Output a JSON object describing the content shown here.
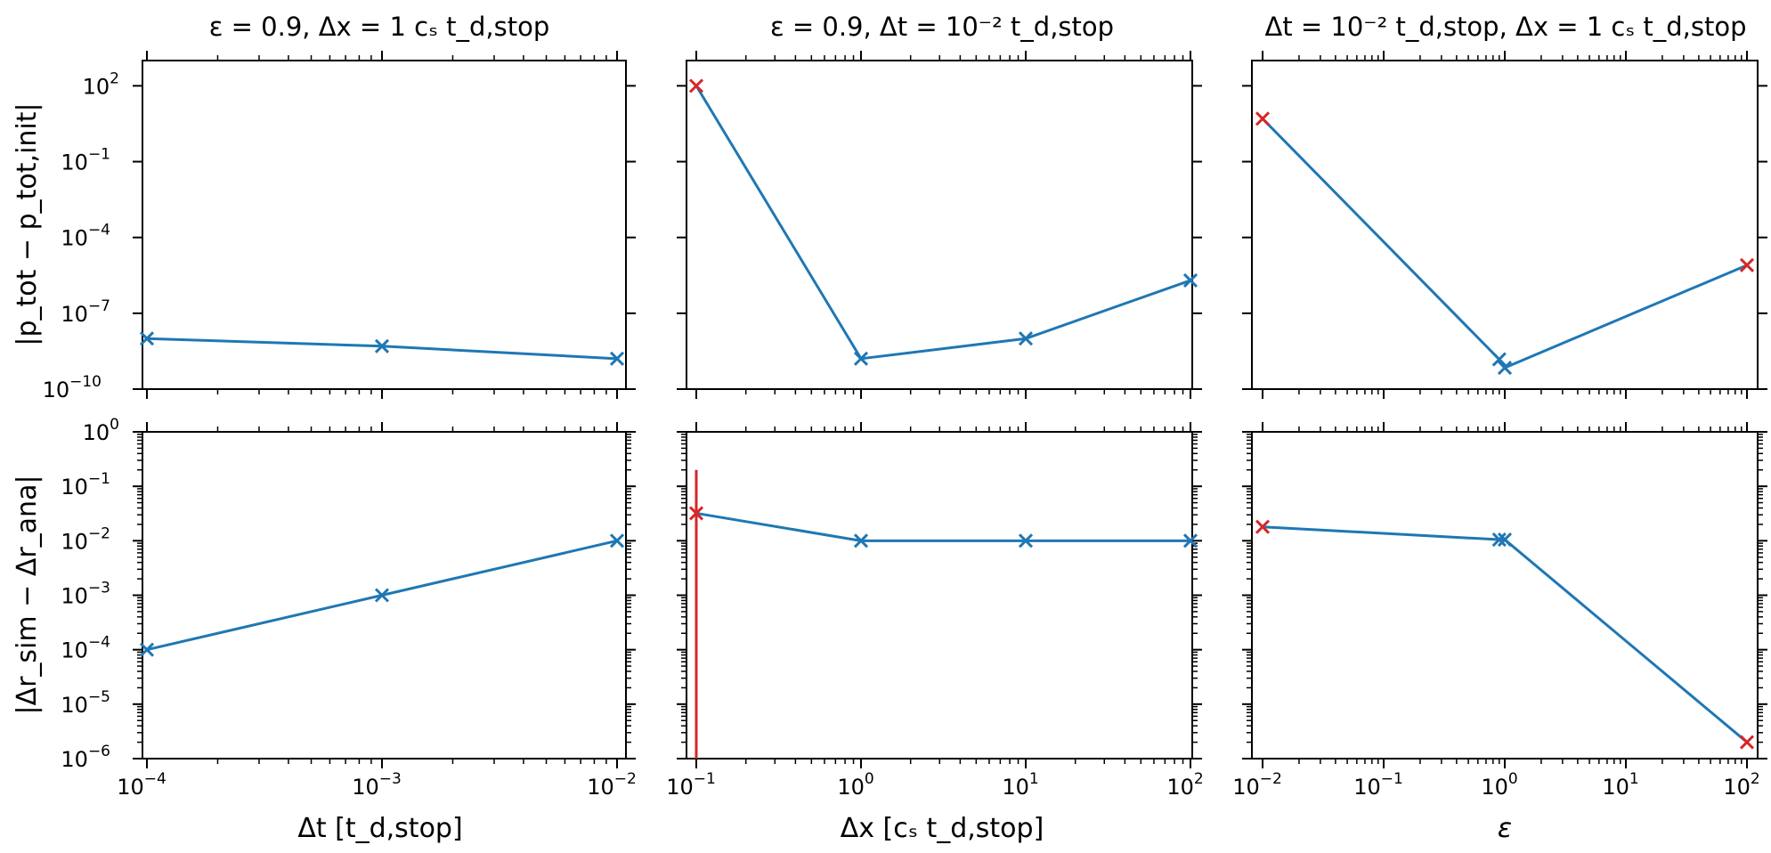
{
  "chart_data": [
    {
      "id": "p_dt",
      "type": "line",
      "xscale": "log",
      "yscale": "log",
      "xlim": [
        0.0001,
        0.01
      ],
      "ylim": [
        1e-10,
        1000
      ],
      "x": [
        0.0001,
        0.001,
        0.01
      ],
      "y": [
        1e-08,
        5e-09,
        1.6e-09
      ],
      "colors": [
        "#1f77b4",
        "#1f77b4",
        "#1f77b4"
      ],
      "title": "ε = 0.9, Δx = 1 cₛ t_d,stop",
      "ylabel": "|p_tot − p_tot,init|",
      "xlabel": "",
      "ytick_exponents": [
        "2",
        "−1",
        "−4",
        "−7",
        "−10"
      ],
      "ytick_values": [
        100,
        0.1,
        0.0001,
        1e-07,
        1e-10
      ],
      "xtick_exponents": [],
      "xtick_values": [
        0.0001,
        0.001,
        0.01
      ]
    },
    {
      "id": "p_dx",
      "type": "line",
      "xscale": "log",
      "yscale": "log",
      "xlim": [
        0.1,
        100
      ],
      "ylim": [
        1e-10,
        1000
      ],
      "x": [
        0.1,
        1,
        10,
        100
      ],
      "y": [
        100,
        1.6e-09,
        1e-08,
        2e-06
      ],
      "colors": [
        "#d62728",
        "#1f77b4",
        "#1f77b4",
        "#1f77b4"
      ],
      "title": "ε = 0.9, Δt = 10⁻² t_d,stop",
      "ylabel": "",
      "xlabel": "",
      "ytick_exponents": [],
      "ytick_values": [
        100,
        0.1,
        0.0001,
        1e-07,
        1e-10
      ],
      "xtick_exponents": [],
      "xtick_values": [
        0.1,
        1,
        10,
        100
      ]
    },
    {
      "id": "p_eps",
      "type": "line",
      "xscale": "log",
      "yscale": "log",
      "xlim": [
        0.01,
        100
      ],
      "ylim": [
        1e-10,
        1000
      ],
      "x": [
        0.01,
        0.9,
        1,
        100
      ],
      "y": [
        5,
        1.5e-09,
        7e-10,
        8e-06
      ],
      "colors": [
        "#d62728",
        "#1f77b4",
        "#1f77b4",
        "#d62728"
      ],
      "title": "Δt = 10⁻² t_d,stop, Δx = 1 cₛ t_d,stop",
      "ylabel": "",
      "xlabel": "",
      "ytick_exponents": [],
      "ytick_values": [
        100,
        0.1,
        0.0001,
        1e-07,
        1e-10
      ],
      "xtick_exponents": [],
      "xtick_values": [
        0.01,
        0.1,
        1,
        10,
        100
      ]
    },
    {
      "id": "r_dt",
      "type": "line",
      "xscale": "log",
      "yscale": "log",
      "xlim": [
        0.0001,
        0.01
      ],
      "ylim": [
        1e-06,
        1
      ],
      "x": [
        0.0001,
        0.001,
        0.01
      ],
      "y": [
        0.0001,
        0.001,
        0.01
      ],
      "colors": [
        "#1f77b4",
        "#1f77b4",
        "#1f77b4"
      ],
      "title": "",
      "ylabel": "|Δr_sim − Δr_ana|",
      "xlabel": "Δt [t_d,stop]",
      "ytick_exponents": [
        "0",
        "−1",
        "−2",
        "−3",
        "−4",
        "−5",
        "−6"
      ],
      "ytick_values": [
        1,
        0.1,
        0.01,
        0.001,
        0.0001,
        1e-05,
        1e-06
      ],
      "xtick_exponents": [
        "−4",
        "−3",
        "−2"
      ],
      "xtick_values": [
        0.0001,
        0.001,
        0.01
      ]
    },
    {
      "id": "r_dx",
      "type": "line",
      "xscale": "log",
      "yscale": "log",
      "xlim": [
        0.1,
        100
      ],
      "ylim": [
        1e-06,
        1
      ],
      "x": [
        0.1,
        1,
        10,
        100
      ],
      "y": [
        0.032,
        0.01,
        0.01,
        0.01
      ],
      "colors": [
        "#d62728",
        "#1f77b4",
        "#1f77b4",
        "#1f77b4"
      ],
      "errorbar": {
        "x": 0.1,
        "y_low": 1e-06,
        "y_high": 0.2,
        "color": "#d62728"
      },
      "title": "",
      "ylabel": "",
      "xlabel": "Δx [cₛ t_d,stop]",
      "ytick_exponents": [],
      "ytick_values": [
        1,
        0.1,
        0.01,
        0.001,
        0.0001,
        1e-05,
        1e-06
      ],
      "xtick_exponents": [
        "−1",
        "0",
        "1",
        "2"
      ],
      "xtick_values": [
        0.1,
        1,
        10,
        100
      ]
    },
    {
      "id": "r_eps",
      "type": "line",
      "xscale": "log",
      "yscale": "log",
      "xlim": [
        0.01,
        100
      ],
      "ylim": [
        1e-06,
        1
      ],
      "x": [
        0.01,
        0.9,
        1,
        100
      ],
      "y": [
        0.018,
        0.0105,
        0.0105,
        2e-06
      ],
      "colors": [
        "#d62728",
        "#1f77b4",
        "#1f77b4",
        "#d62728"
      ],
      "title": "",
      "ylabel": "",
      "xlabel": "ε",
      "ytick_exponents": [],
      "ytick_values": [
        1,
        0.1,
        0.01,
        0.001,
        0.0001,
        1e-05,
        1e-06
      ],
      "xtick_exponents": [
        "−2",
        "−1",
        "0",
        "1",
        "2"
      ],
      "xtick_values": [
        0.01,
        0.1,
        1,
        10,
        100
      ]
    }
  ],
  "colors": {
    "line": "#1f77b4",
    "marker_flag": "#d62728",
    "axes": "#000000"
  }
}
